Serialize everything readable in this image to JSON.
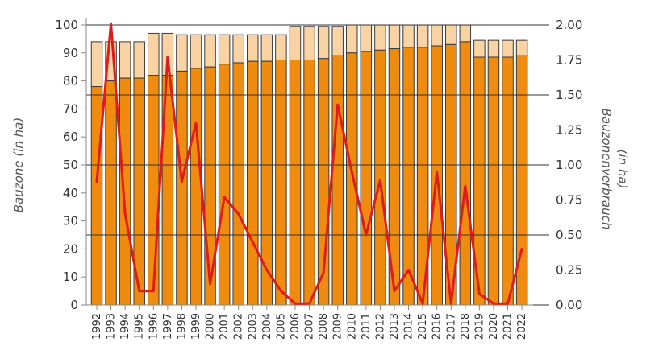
{
  "chart_data": {
    "type": "bar",
    "title": "",
    "categories": [
      "1992",
      "1993",
      "1994",
      "1995",
      "1996",
      "1997",
      "1998",
      "1999",
      "2000",
      "2001",
      "2002",
      "2003",
      "2004",
      "2005",
      "2006",
      "2007",
      "2008",
      "2009",
      "2010",
      "2011",
      "2012",
      "2013",
      "2014",
      "2015",
      "2016",
      "2017",
      "2018",
      "2019",
      "2020",
      "2021",
      "2022"
    ],
    "series": [
      {
        "role": "bar-base",
        "axis": "left",
        "values": [
          78,
          80,
          81,
          81,
          82,
          82,
          83.5,
          84.5,
          85,
          86,
          86.5,
          87,
          87,
          87.5,
          87.5,
          87.5,
          88,
          89,
          90,
          90.5,
          91,
          91.5,
          92,
          92,
          92.5,
          93,
          94,
          88.5,
          88.5,
          88.5,
          89
        ],
        "color": "#ef8b0e"
      },
      {
        "role": "bar-top",
        "axis": "left",
        "values": [
          94,
          94,
          94,
          94,
          97,
          97,
          96.5,
          96.5,
          96.5,
          96.5,
          96.5,
          96.5,
          96.5,
          96.5,
          99.5,
          99.5,
          99.5,
          99.5,
          100,
          100,
          100,
          100,
          100,
          100,
          100,
          100,
          100,
          94.5,
          94.5,
          94.5,
          94.5
        ],
        "color": "#f9d3a3"
      },
      {
        "role": "line",
        "axis": "right",
        "values": [
          0.88,
          2.01,
          0.65,
          0.1,
          0.1,
          1.77,
          0.88,
          1.3,
          0.15,
          0.77,
          0.65,
          0.45,
          0.25,
          0.1,
          0.01,
          0.01,
          0.23,
          1.43,
          0.95,
          0.5,
          0.89,
          0.1,
          0.25,
          0.01,
          0.95,
          0.01,
          0.85,
          0.08,
          0.01,
          0.01,
          0.4
        ],
        "color": "#e01b1b"
      }
    ],
    "y_left": {
      "label": "Bauzone (in ha)",
      "range": [
        0,
        100
      ],
      "ticks": [
        "0",
        "10",
        "20",
        "30",
        "40",
        "50",
        "60",
        "70",
        "80",
        "90",
        "100"
      ]
    },
    "y_right": {
      "label_line1": "Bauzonenverbrauch",
      "label_line2": "(in ha)",
      "range": [
        0,
        2
      ],
      "ticks": [
        "0.00",
        "0.25",
        "0.50",
        "0.75",
        "1.00",
        "1.25",
        "1.50",
        "1.75",
        "2.00"
      ]
    },
    "grid": false,
    "legend": "none"
  }
}
